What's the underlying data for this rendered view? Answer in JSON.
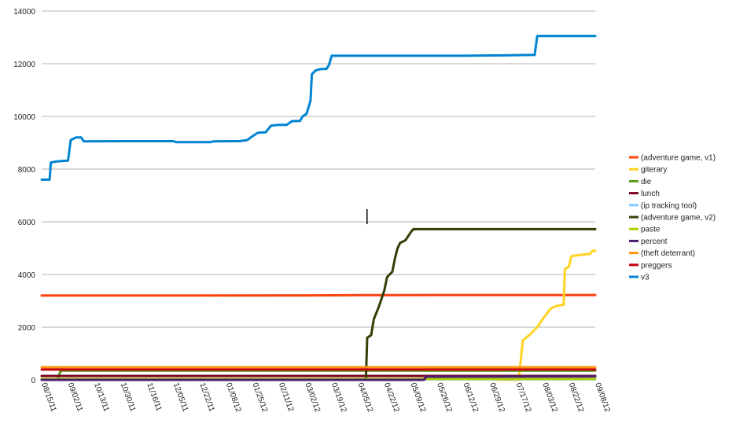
{
  "chart_data": {
    "type": "line",
    "ylim": [
      0,
      14000
    ],
    "yticks": [
      0,
      2000,
      4000,
      6000,
      8000,
      10000,
      12000,
      14000
    ],
    "x_tick_labels": [
      "08/15/11",
      "09/02/11",
      "10/13/11",
      "10/30/11",
      "11/16/11",
      "12/05/11",
      "12/22/11",
      "01/08/12",
      "01/25/12",
      "02/11/12",
      "03/02/12",
      "03/19/12",
      "04/05/12",
      "04/22/12",
      "05/09/12",
      "05/26/12",
      "06/12/12",
      "06/29/12",
      "07/17/12",
      "08/03/12",
      "08/22/12",
      "09/08/12"
    ],
    "x_range": [
      0,
      21
    ],
    "grid": true,
    "legend_position": "right",
    "series": [
      {
        "name": "(adventure game, v1)",
        "color": "#ff420e",
        "points": [
          [
            0,
            3200
          ],
          [
            6,
            3200
          ],
          [
            11,
            3210
          ],
          [
            12,
            3215
          ],
          [
            15,
            3220
          ],
          [
            21,
            3220
          ]
        ]
      },
      {
        "name": "giterary",
        "color": "#ffd320",
        "points": [
          [
            17.3,
            0
          ],
          [
            18.1,
            0
          ],
          [
            18.25,
            1500
          ],
          [
            18.5,
            1700
          ],
          [
            18.8,
            2000
          ],
          [
            19.0,
            2300
          ],
          [
            19.3,
            2700
          ],
          [
            19.5,
            2800
          ],
          [
            19.8,
            2850
          ],
          [
            19.85,
            4200
          ],
          [
            20.0,
            4300
          ],
          [
            20.1,
            4700
          ],
          [
            20.5,
            4750
          ],
          [
            20.8,
            4780
          ],
          [
            20.9,
            4900
          ],
          [
            21,
            4900
          ]
        ]
      },
      {
        "name": "die",
        "color": "#579d1c",
        "points": [
          [
            0,
            0
          ],
          [
            0.6,
            0
          ],
          [
            0.7,
            300
          ],
          [
            0.75,
            350
          ],
          [
            21,
            350
          ]
        ]
      },
      {
        "name": "lunch",
        "color": "#7e0021",
        "points": [
          [
            0,
            150
          ],
          [
            21,
            150
          ]
        ]
      },
      {
        "name": "(ip tracking tool)",
        "color": "#83caff",
        "points": [
          [
            0,
            20
          ],
          [
            14,
            20
          ],
          [
            18,
            20
          ],
          [
            21,
            20
          ]
        ]
      },
      {
        "name": "(adventure game, v2)",
        "color": "#314004",
        "points": [
          [
            11.8,
            0
          ],
          [
            12.3,
            0
          ],
          [
            12.35,
            1600
          ],
          [
            12.5,
            1700
          ],
          [
            12.6,
            2300
          ],
          [
            12.8,
            2800
          ],
          [
            13.0,
            3400
          ],
          [
            13.1,
            3900
          ],
          [
            13.3,
            4100
          ],
          [
            13.4,
            4600
          ],
          [
            13.5,
            5000
          ],
          [
            13.6,
            5200
          ],
          [
            13.8,
            5300
          ],
          [
            14.0,
            5600
          ],
          [
            14.1,
            5720
          ],
          [
            15,
            5720
          ],
          [
            21,
            5720
          ]
        ]
      },
      {
        "name": "paste",
        "color": "#aecf00",
        "points": [
          [
            0,
            40
          ],
          [
            21,
            40
          ]
        ]
      },
      {
        "name": "percent",
        "color": "#4b1f6f",
        "points": [
          [
            0,
            0
          ],
          [
            10,
            0
          ],
          [
            14.5,
            0
          ],
          [
            14.6,
            120
          ],
          [
            21,
            130
          ]
        ]
      },
      {
        "name": "(theft deterrant)",
        "color": "#ff950e",
        "points": [
          [
            0,
            480
          ],
          [
            21,
            480
          ]
        ]
      },
      {
        "name": "preggers",
        "color": "#c5000b",
        "points": [
          [
            0,
            390
          ],
          [
            21,
            390
          ]
        ]
      },
      {
        "name": "v3",
        "color": "#0084d1",
        "points": [
          [
            0,
            7600
          ],
          [
            0.3,
            7600
          ],
          [
            0.35,
            8250
          ],
          [
            0.5,
            8280
          ],
          [
            0.7,
            8300
          ],
          [
            1.0,
            8320
          ],
          [
            1.1,
            9100
          ],
          [
            1.3,
            9200
          ],
          [
            1.5,
            9200
          ],
          [
            1.6,
            9050
          ],
          [
            3,
            9060
          ],
          [
            5.0,
            9060
          ],
          [
            5.1,
            9020
          ],
          [
            6.4,
            9020
          ],
          [
            6.5,
            9050
          ],
          [
            7.2,
            9060
          ],
          [
            7.5,
            9060
          ],
          [
            7.8,
            9100
          ],
          [
            8.0,
            9250
          ],
          [
            8.2,
            9380
          ],
          [
            8.5,
            9400
          ],
          [
            8.7,
            9650
          ],
          [
            9.0,
            9680
          ],
          [
            9.3,
            9680
          ],
          [
            9.5,
            9820
          ],
          [
            9.8,
            9830
          ],
          [
            9.9,
            10000
          ],
          [
            10.05,
            10100
          ],
          [
            10.2,
            10600
          ],
          [
            10.25,
            11600
          ],
          [
            10.4,
            11750
          ],
          [
            10.6,
            11800
          ],
          [
            10.8,
            11800
          ],
          [
            10.9,
            11950
          ],
          [
            11.0,
            12300
          ],
          [
            11.5,
            12300
          ],
          [
            12,
            12300
          ],
          [
            16,
            12300
          ],
          [
            17.8,
            12320
          ],
          [
            18.5,
            12330
          ],
          [
            18.7,
            12330
          ],
          [
            18.8,
            13050
          ],
          [
            21,
            13050
          ]
        ]
      }
    ]
  }
}
